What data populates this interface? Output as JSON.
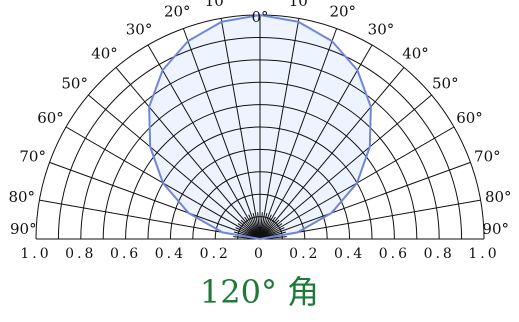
{
  "chart_data": {
    "type": "line",
    "coordinate_system": "polar-semicircle",
    "radial_range": [
      0,
      1.0
    ],
    "angular_range_deg": [
      -90,
      90
    ],
    "grid": true,
    "angle_tick_labels": [
      "90°",
      "80°",
      "70°",
      "60°",
      "50°",
      "40°",
      "30°",
      "20°",
      "10°",
      "0°",
      "10°",
      "20°",
      "30°",
      "40°",
      "50°",
      "60°",
      "70°",
      "80°",
      "90°"
    ],
    "radial_tick_labels_left": [
      "1.0",
      "0.8",
      "0.6",
      "0.4",
      "0.2"
    ],
    "radial_tick_labels_center": "0",
    "radial_tick_labels_right": [
      "0.2",
      "0.4",
      "0.6",
      "0.8",
      "1.0"
    ],
    "series": [
      {
        "color": "#6f86d9",
        "fill": "#eef4ff",
        "angles_deg": [
          -90,
          -80,
          -70,
          -60,
          -50,
          -40,
          -30,
          -20,
          -10,
          0,
          10,
          20,
          30,
          40,
          50,
          60,
          70,
          80,
          90
        ],
        "values": [
          0.0,
          0.17,
          0.34,
          0.5,
          0.64,
          0.77,
          0.87,
          0.94,
          0.985,
          1.0,
          0.985,
          0.94,
          0.87,
          0.77,
          0.64,
          0.5,
          0.34,
          0.17,
          0.0
        ]
      }
    ]
  },
  "caption": "120° 角",
  "colors": {
    "grid": "#111111",
    "caption": "#1f7a3a",
    "curve": "#6f86d9",
    "curve_fill": "#eef4ff"
  }
}
